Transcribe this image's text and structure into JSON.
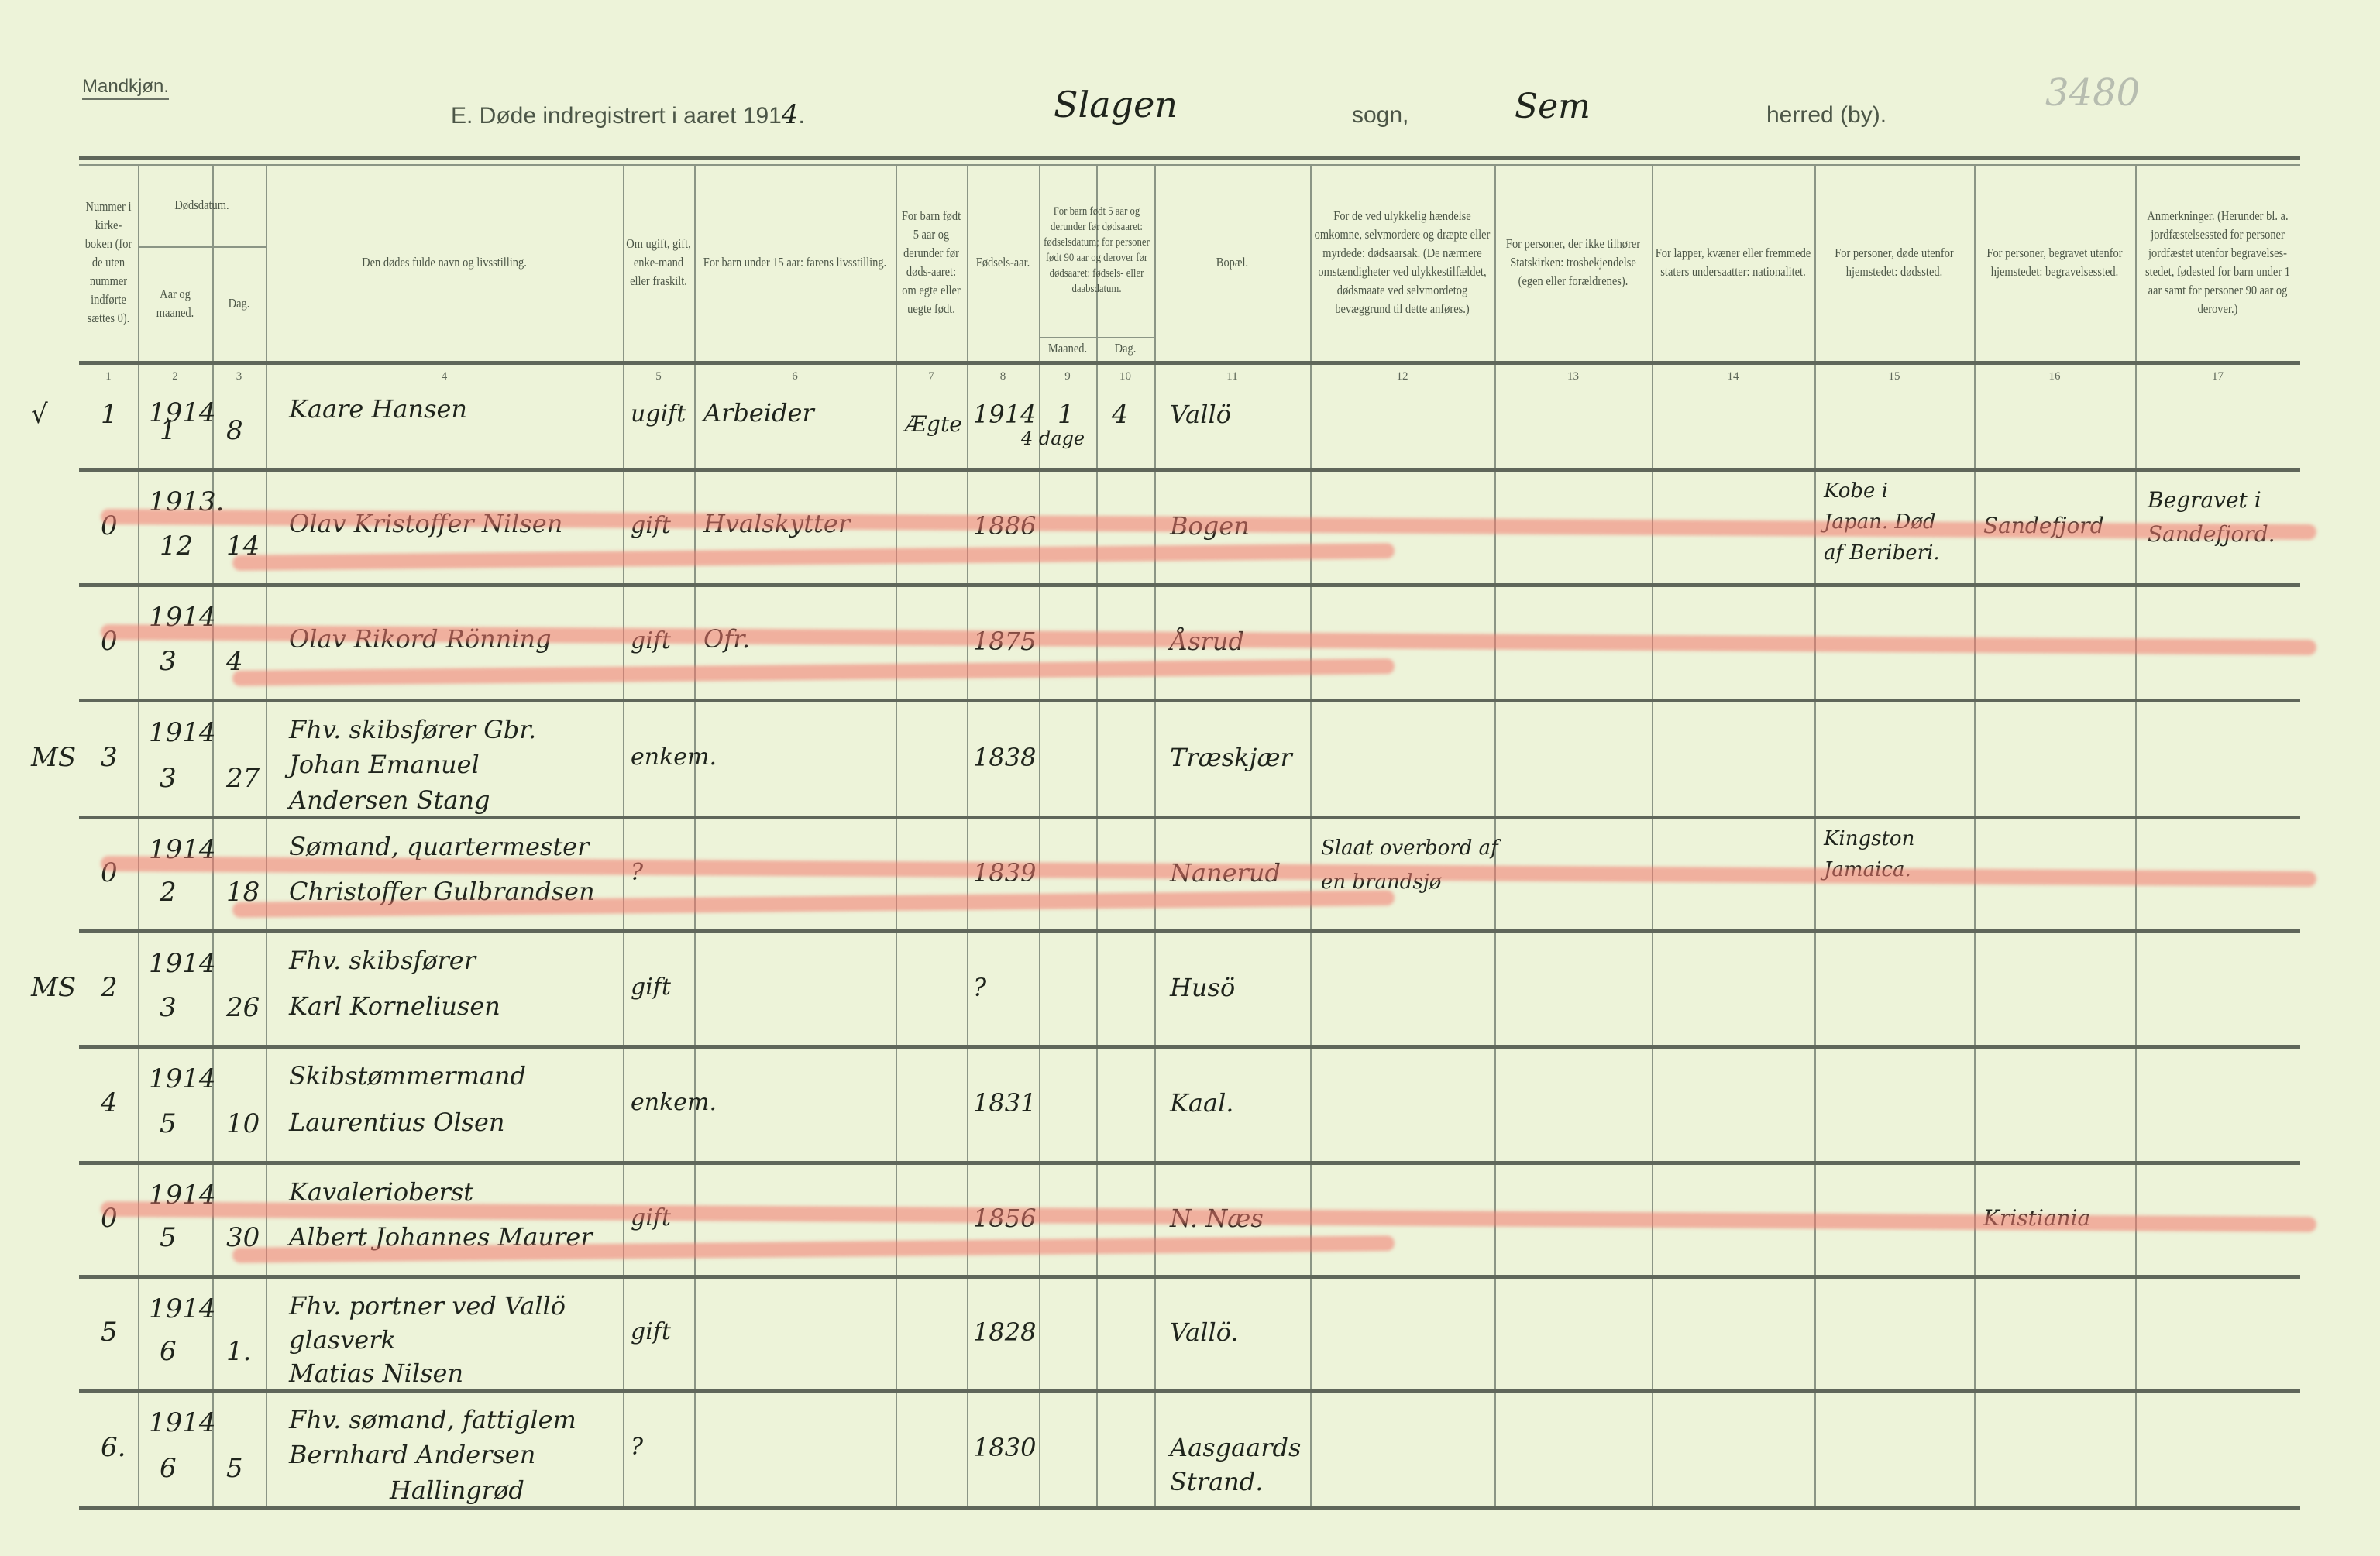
{
  "header": {
    "gender": "Mandkjøn.",
    "title_prefix": "E.  Døde indregistrert i aaret 191",
    "year_digit": "4",
    "parish": "Slagen",
    "parish_label": "sogn,",
    "district": "Sem",
    "district_label": "herred (by).",
    "archive_number": "3480"
  },
  "columns": [
    {
      "num": "1",
      "label": "Nummer i kirke-boken (for de uten nummer indførte sættes 0)."
    },
    {
      "num": "2",
      "label": "Aar og maaned."
    },
    {
      "num": "3",
      "label": "Dag."
    },
    {
      "num": "4",
      "label": "Den dødes fulde navn og livsstilling."
    },
    {
      "num": "5",
      "label": "Om ugift, gift, enke-mand eller fraskilt."
    },
    {
      "num": "6",
      "label": "For barn under 15 aar: farens livsstilling."
    },
    {
      "num": "7",
      "label": "For barn født 5 aar og derunder før døds-aaret: om egte eller uegte født."
    },
    {
      "num": "8",
      "label": "Fødsels-aar."
    },
    {
      "num": "9",
      "label": "Maaned."
    },
    {
      "num": "10",
      "label": "Dag."
    },
    {
      "num": "11",
      "label": "Bopæl."
    },
    {
      "num": "12",
      "label": "For de ved ulykkelig hændelse omkomne, selvmordere og dræpte eller myrdede: dødsaarsak. (De nærmere omstændigheter ved ulykkestilfældet, dødsmaate ved selvmordetog bevæggrund til dette anføres.)"
    },
    {
      "num": "13",
      "label": "For personer, der ikke tilhører Statskirken: trosbekjendelse (egen eller forældrenes)."
    },
    {
      "num": "14",
      "label": "For lapper, kvæner eller fremmede staters undersaatter: nationalitet."
    },
    {
      "num": "15",
      "label": "For personer, døde utenfor hjemstedet: dødssted."
    },
    {
      "num": "16",
      "label": "For personer, begravet utenfor hjemstedet: begravelsessted."
    },
    {
      "num": "17",
      "label": "Anmerkninger. (Herunder bl. a. jordfæstelsessted for personer jordfæstet utenfor begravelses-stedet, fødested for barn under 1 aar samt for personer 90 aar og derover.)"
    }
  ],
  "group_headers": {
    "death_date": "Dødsdatum.",
    "birth_date": "For barn født 5 aar og derunder før dødsaaret: fødselsdatum; for personer født 90 aar og derover før dødsaaret: fødsels- eller daabsdatum."
  },
  "rows": [
    {
      "margin": "√",
      "nr": "1",
      "year": "1914",
      "month": "1",
      "day": "8",
      "name": [
        "Kaare Hansen"
      ],
      "civil": "ugift",
      "father": "Arbeider",
      "legit": "Ægte",
      "birth_year": "1914",
      "birth_month": "1",
      "birth_day": "4",
      "birth_note": "4 dage",
      "residence": "Vallö",
      "cause": "",
      "place_death": "",
      "burial": "",
      "remarks": "",
      "struck": false
    },
    {
      "margin": "",
      "nr": "0",
      "year": "1913.",
      "month": "12",
      "day": "14",
      "name": [
        "Olav Kristoffer Nilsen"
      ],
      "civil": "gift",
      "father": "Hvalskytter",
      "legit": "",
      "birth_year": "1886",
      "birth_month": "",
      "birth_day": "",
      "birth_note": "",
      "residence": "Bogen",
      "cause": "",
      "place_death": "Kobe i Japan. Død af Beriberi.",
      "burial": "Sandefjord",
      "remarks": "Begravet i Sandefjord.",
      "struck": true
    },
    {
      "margin": "",
      "nr": "0",
      "year": "1914",
      "month": "3",
      "day": "4",
      "name": [
        "Olav Rikord Rönning"
      ],
      "civil": "gift",
      "father": "Ofr.",
      "legit": "",
      "birth_year": "1875",
      "birth_month": "",
      "birth_day": "",
      "birth_note": "",
      "residence": "Åsrud",
      "cause": "",
      "place_death": "",
      "burial": "",
      "remarks": "",
      "struck": true
    },
    {
      "margin": "MS",
      "nr": "3",
      "year": "1914",
      "month": "3",
      "day": "27",
      "name": [
        "Fhv. skibsfører Gbr.",
        "Johan Emanuel",
        "Andersen Stang"
      ],
      "civil": "enkem.",
      "father": "",
      "legit": "",
      "birth_year": "1838",
      "birth_month": "",
      "birth_day": "",
      "birth_note": "",
      "residence": "Træskjær",
      "cause": "",
      "place_death": "",
      "burial": "",
      "remarks": "",
      "struck": false
    },
    {
      "margin": "",
      "nr": "0",
      "year": "1914",
      "month": "2",
      "day": "18",
      "name": [
        "Sømand, quartermester",
        "Christoffer Gulbrandsen"
      ],
      "civil": "?",
      "father": "",
      "legit": "",
      "birth_year": "1839",
      "birth_month": "",
      "birth_day": "",
      "birth_note": "",
      "residence": "Nanerud",
      "cause": "Slaat overbord af en brandsjø",
      "place_death": "Kingston Jamaica.",
      "burial": "",
      "remarks": "",
      "struck": true
    },
    {
      "margin": "MS",
      "nr": "2",
      "year": "1914",
      "month": "3",
      "day": "26",
      "name": [
        "Fhv. skibsfører",
        "Karl Korneliusen"
      ],
      "civil": "gift",
      "father": "",
      "legit": "",
      "birth_year": "?",
      "birth_month": "",
      "birth_day": "",
      "birth_note": "",
      "residence": "Husö",
      "cause": "",
      "place_death": "",
      "burial": "",
      "remarks": "",
      "struck": false
    },
    {
      "margin": "",
      "nr": "4",
      "year": "1914",
      "month": "5",
      "day": "10",
      "name": [
        "Skibstømmermand",
        "Laurentius Olsen"
      ],
      "civil": "enkem.",
      "father": "",
      "legit": "",
      "birth_year": "1831",
      "birth_month": "",
      "birth_day": "",
      "birth_note": "",
      "residence": "Kaal.",
      "cause": "",
      "place_death": "",
      "burial": "",
      "remarks": "",
      "struck": false
    },
    {
      "margin": "",
      "nr": "0",
      "year": "1914",
      "month": "5",
      "day": "30",
      "name": [
        "Kavalerioberst",
        "Albert Johannes Maurer"
      ],
      "civil": "gift",
      "father": "",
      "legit": "",
      "birth_year": "1856",
      "birth_month": "",
      "birth_day": "",
      "birth_note": "",
      "residence": "N. Næs",
      "cause": "",
      "place_death": "",
      "burial": "Kristiania",
      "remarks": "",
      "struck": true
    },
    {
      "margin": "",
      "nr": "5",
      "year": "1914",
      "month": "6",
      "day": "1.",
      "name": [
        "Fhv. portner ved Vallö",
        "glasverk",
        "Matias Nilsen"
      ],
      "civil": "gift",
      "father": "",
      "legit": "",
      "birth_year": "1828",
      "birth_month": "",
      "birth_day": "",
      "birth_note": "",
      "residence": "Vallö.",
      "cause": "",
      "place_death": "",
      "burial": "",
      "remarks": "",
      "struck": false
    },
    {
      "margin": "",
      "nr": "6.",
      "year": "1914",
      "month": "6",
      "day": "5",
      "name": [
        "Fhv. sømand, fattiglem",
        "Bernhard Andersen",
        "Hallingrød"
      ],
      "civil": "?",
      "father": "",
      "legit": "",
      "birth_year": "1830",
      "birth_month": "",
      "birth_day": "",
      "birth_note": "",
      "residence": "Aasgaards Strand.",
      "cause": "",
      "place_death": "",
      "burial": "",
      "remarks": "",
      "struck": false
    }
  ],
  "colors": {
    "paper": "#edf3d9",
    "ink": "#1f241c",
    "crayon": "#f2786e",
    "rule": "#5f665a"
  }
}
